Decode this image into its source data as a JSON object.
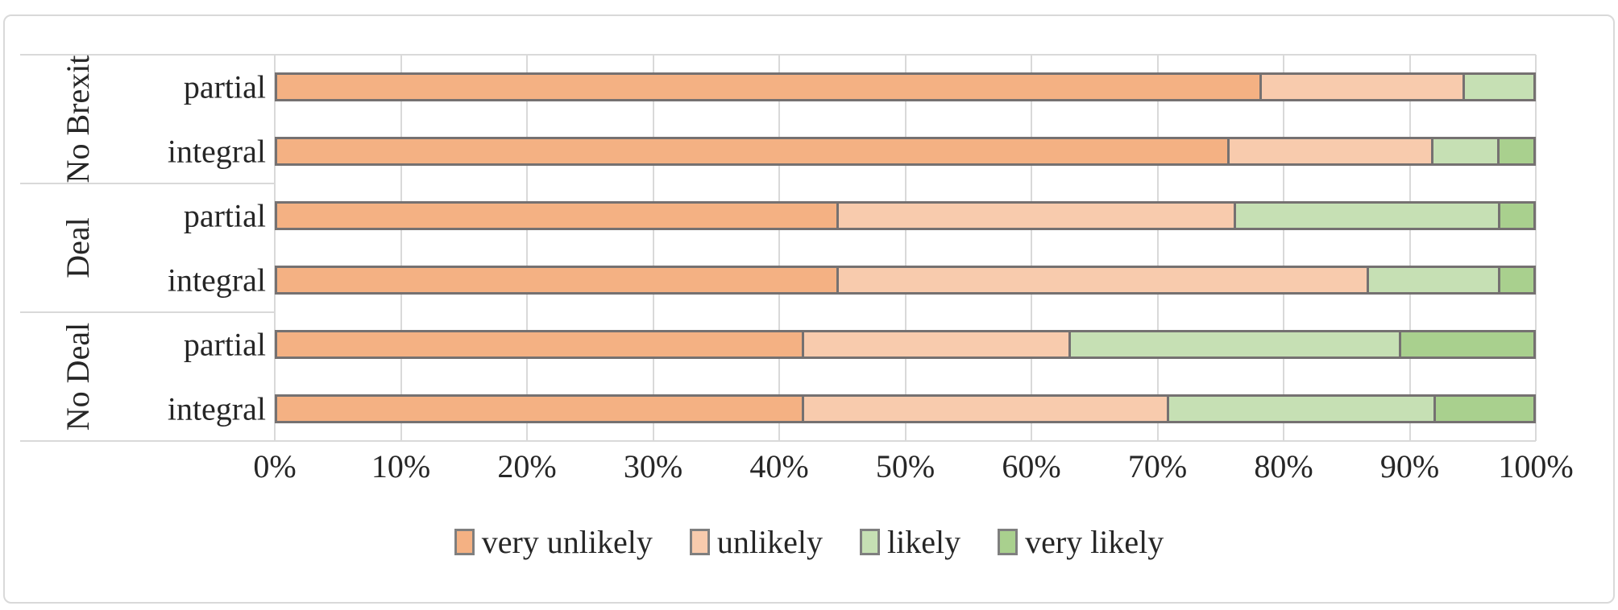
{
  "chart_data": {
    "type": "bar",
    "orientation": "horizontal",
    "stacked": true,
    "unit": "%",
    "title": "",
    "x_axis": {
      "min": 0,
      "max": 100,
      "tick_labels": [
        "0%",
        "10%",
        "20%",
        "30%",
        "40%",
        "50%",
        "60%",
        "70%",
        "80%",
        "90%",
        "100%"
      ],
      "grid": true
    },
    "series": [
      {
        "name": "very unlikely",
        "color": "#F4B183"
      },
      {
        "name": "unlikely",
        "color": "#F8CBAD"
      },
      {
        "name": "likely",
        "color": "#C6E0B4"
      },
      {
        "name": "very likely",
        "color": "#A9D08E"
      }
    ],
    "groups": [
      {
        "label": "No Brexit",
        "rows": [
          {
            "label": "partial",
            "values": [
              78.3,
              16.1,
              5.6,
              0.0
            ]
          },
          {
            "label": "integral",
            "values": [
              75.7,
              16.2,
              5.2,
              2.9
            ]
          }
        ]
      },
      {
        "label": "Deal",
        "rows": [
          {
            "label": "partial",
            "values": [
              44.7,
              31.5,
              21.0,
              2.8
            ]
          },
          {
            "label": "integral",
            "values": [
              44.7,
              42.1,
              10.4,
              2.8
            ]
          }
        ]
      },
      {
        "label": "No Deal",
        "rows": [
          {
            "label": "partial",
            "values": [
              42.0,
              21.1,
              26.2,
              10.7
            ]
          },
          {
            "label": "integral",
            "values": [
              42.0,
              28.9,
              21.2,
              7.9
            ]
          }
        ]
      }
    ],
    "legend_position": "bottom"
  },
  "styles": {
    "bar_border": "#757171",
    "gridline": "#D9D9D9",
    "frame_border": "#D9D9D9",
    "text": "#262626"
  }
}
